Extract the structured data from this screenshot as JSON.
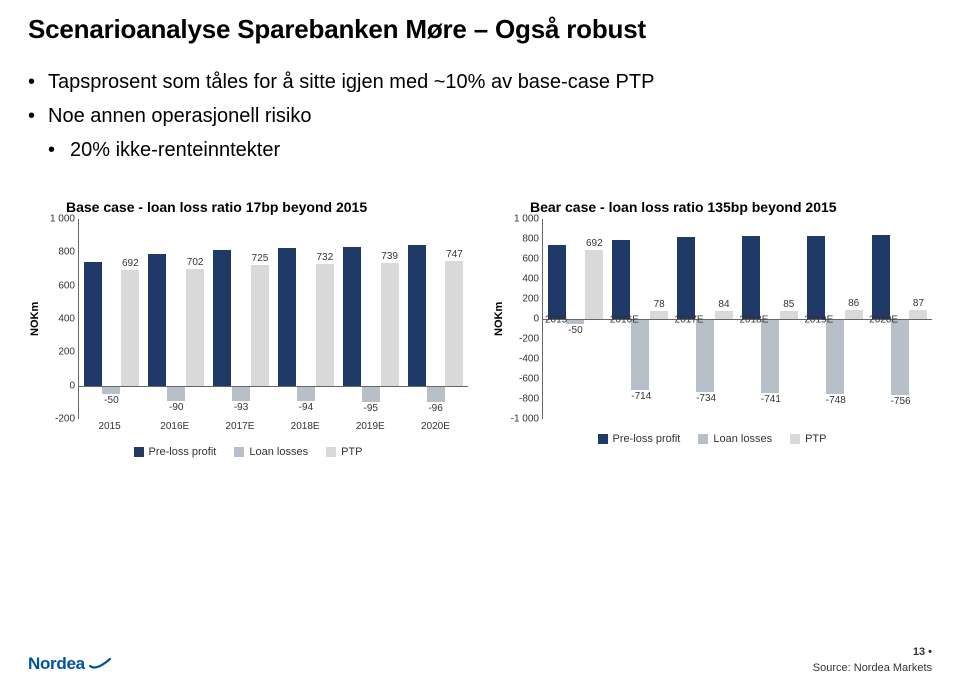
{
  "title": "Scenarioanalyse Sparebanken Møre – Også robust",
  "bullets": [
    "Tapsprosent som tåles for å sitte igjen med ~10% av base-case PTP",
    "Noe annen operasjonell risiko"
  ],
  "sub_bullets": [
    "20% ikke-renteinntekter"
  ],
  "y_axis_label": "NOKm",
  "legend": {
    "s1": "Pre-loss profit",
    "s2": "Loan losses",
    "s3": "PTP"
  },
  "colors": {
    "series1": "#1f3a66",
    "series2": "#b7c0c9",
    "series3": "#d9d9d9",
    "axis": "#666666",
    "text": "#333333",
    "background": "#ffffff",
    "brand": "#00539f"
  },
  "chart1": {
    "title": "Base case - loan loss ratio 17bp beyond 2015",
    "ylim": [
      -200,
      1000
    ],
    "ytick_step": 200,
    "categories": [
      "2015",
      "2016E",
      "2017E",
      "2018E",
      "2019E",
      "2020E"
    ],
    "series": {
      "preloss": [
        741,
        792,
        817,
        826,
        834,
        843
      ],
      "losses": [
        -50,
        -90,
        -93,
        -94,
        -95,
        -96
      ],
      "ptp": [
        692,
        702,
        725,
        732,
        739,
        747
      ]
    },
    "baseline_category_index": null
  },
  "chart2": {
    "title": "Bear case - loan loss ratio 135bp beyond 2015",
    "ylim": [
      -1000,
      1000
    ],
    "ytick_step": 200,
    "categories": [
      "2015",
      "2016E",
      "2017E",
      "2018E",
      "2019E",
      "2020E"
    ],
    "series": {
      "preloss": [
        741,
        792,
        817,
        826,
        834,
        843
      ],
      "losses": [
        -50,
        -714,
        -734,
        -741,
        -748,
        -756
      ],
      "ptp": [
        692,
        78,
        84,
        85,
        86,
        87
      ]
    },
    "baseline_category_index": 0
  },
  "footer": {
    "logo_text": "Nordea",
    "page_number": "13",
    "source": "Source: Nordea Markets"
  }
}
